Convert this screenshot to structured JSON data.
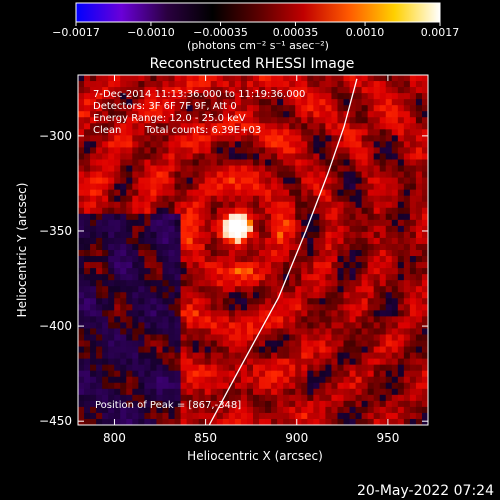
{
  "colorbar": {
    "min": -0.0017,
    "max": 0.0017,
    "ticks": [
      -0.0017,
      -0.001,
      -0.00035,
      0.00035,
      0.001,
      0.0017
    ],
    "tick_labels": [
      "−0.0017",
      "−0.0010",
      "−0.00035",
      "0.00035",
      "0.0010",
      "0.0017"
    ],
    "units_label": "(photons cm⁻² s⁻¹ asec⁻²)",
    "colors": [
      "#0000ff",
      "#6a00d8",
      "#2a0040",
      "#000000",
      "#5a0000",
      "#c00000",
      "#ff5a00",
      "#ffd000",
      "#ffffff"
    ]
  },
  "chart_data": {
    "type": "heatmap",
    "title": "Reconstructed RHESSI Image",
    "xlabel": "Heliocentric X (arcsec)",
    "ylabel": "Heliocentric Y (arcsec)",
    "xlim": [
      780,
      972
    ],
    "ylim": [
      -452,
      -268
    ],
    "xticks": [
      800,
      850,
      900,
      950
    ],
    "yticks": [
      -300,
      -350,
      -400,
      -450
    ],
    "ytick_labels": [
      "−300",
      "−350",
      "−400",
      "−450"
    ],
    "source_peak": {
      "x": 867,
      "y": -348
    },
    "limb_curve": [
      [
        852,
        -452
      ],
      [
        870,
        -420
      ],
      [
        890,
        -385
      ],
      [
        905,
        -350
      ],
      [
        917,
        -320
      ],
      [
        926,
        -295
      ],
      [
        933,
        -270
      ]
    ],
    "annotations": {
      "time_range": "7-Dec-2014 11:13:36.000 to 11:19:36.000",
      "detectors": "Detectors: 3F 6F 7F 9F, Att 0",
      "energy": "Energy Range: 12.0 - 25.0 keV",
      "method": "Clean",
      "counts": "Total counts: 6.39E+03",
      "peak": "Position of Peak = [867,-348]"
    }
  },
  "footer": {
    "date": "20-May-2022 07:24"
  }
}
